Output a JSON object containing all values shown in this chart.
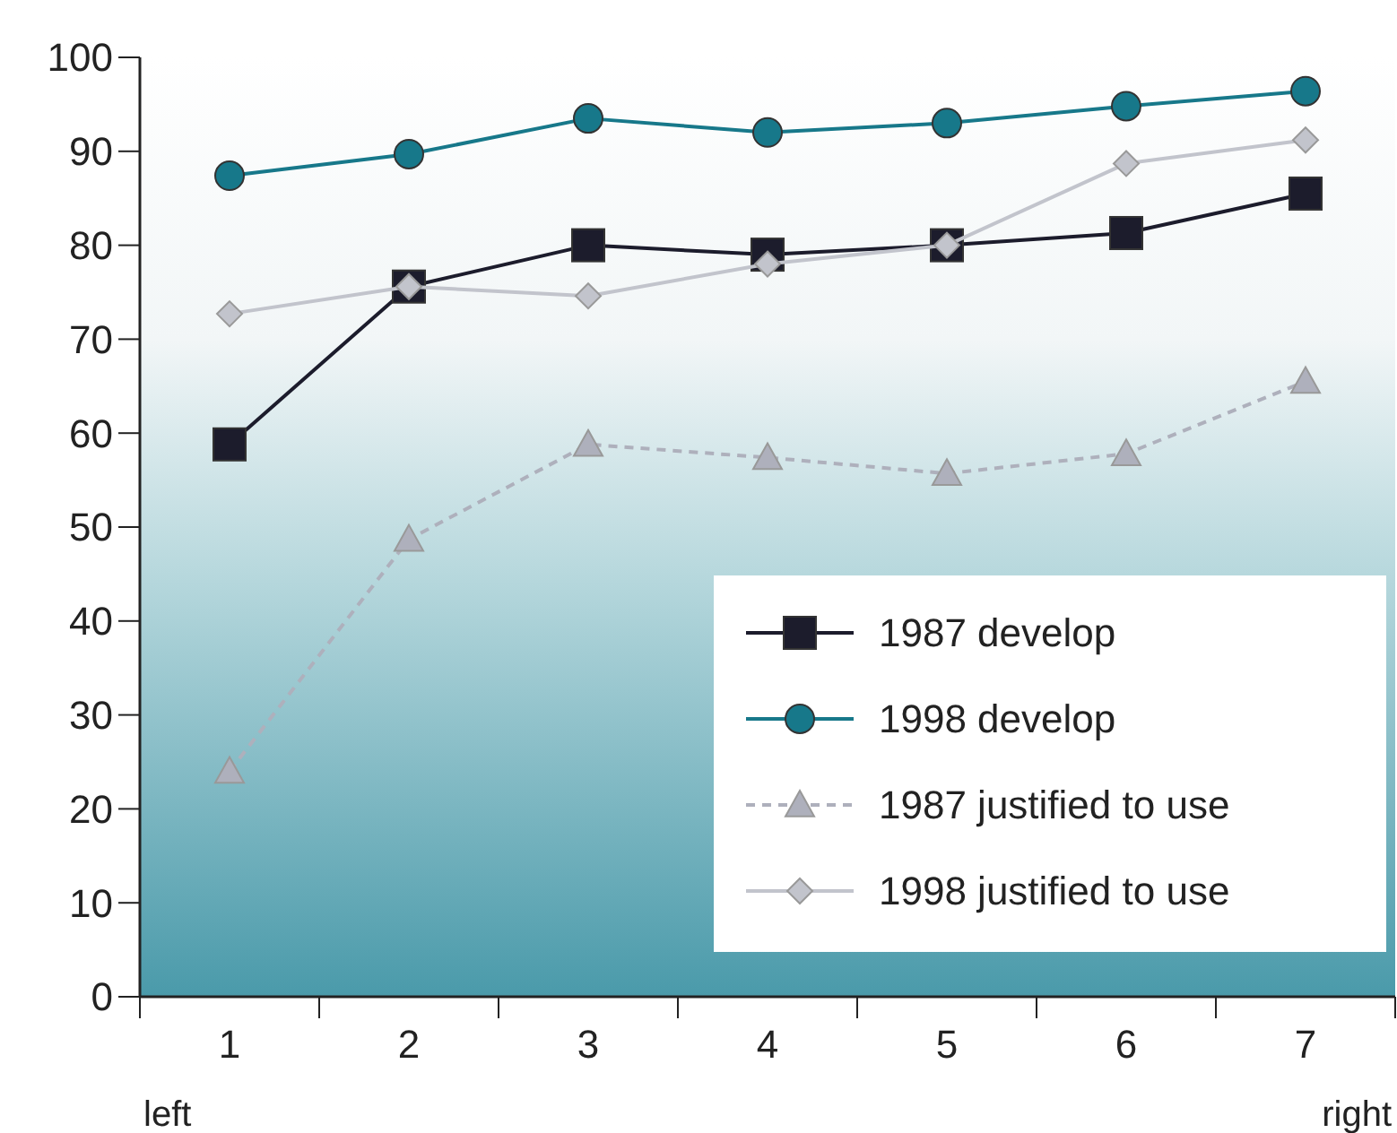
{
  "chart_data": {
    "type": "line",
    "categories": [
      "1",
      "2",
      "3",
      "4",
      "5",
      "6",
      "7"
    ],
    "ylim": [
      0,
      100
    ],
    "yticks": [
      0,
      10,
      20,
      30,
      40,
      50,
      60,
      70,
      80,
      90,
      100
    ],
    "grid": false,
    "legend": "bottom right",
    "annotations": [
      "left",
      "right"
    ],
    "series": [
      {
        "name": "1987 develop",
        "color": "#1c1c2c",
        "marker": "square",
        "line_style": "solid",
        "values": [
          58.8,
          75.6,
          80,
          79,
          80,
          81.3,
          85.5
        ]
      },
      {
        "name": "1998 develop",
        "color": "#17788a",
        "marker": "circle",
        "line_style": "solid",
        "values": [
          87.4,
          89.7,
          93.5,
          92,
          93,
          94.8,
          96.4
        ]
      },
      {
        "name": "1987 justified to use",
        "color": "#aeb0bc",
        "marker": "triangle",
        "line_style": "dashed",
        "values": [
          24,
          48.7,
          58.8,
          57.4,
          55.7,
          57.8,
          65.5
        ]
      },
      {
        "name": "1998 justified to use",
        "color": "#c2c4cc",
        "marker": "diamond",
        "line_style": "solid",
        "values": [
          72.7,
          75.6,
          74.6,
          78,
          80,
          88.7,
          91.2
        ]
      }
    ]
  }
}
